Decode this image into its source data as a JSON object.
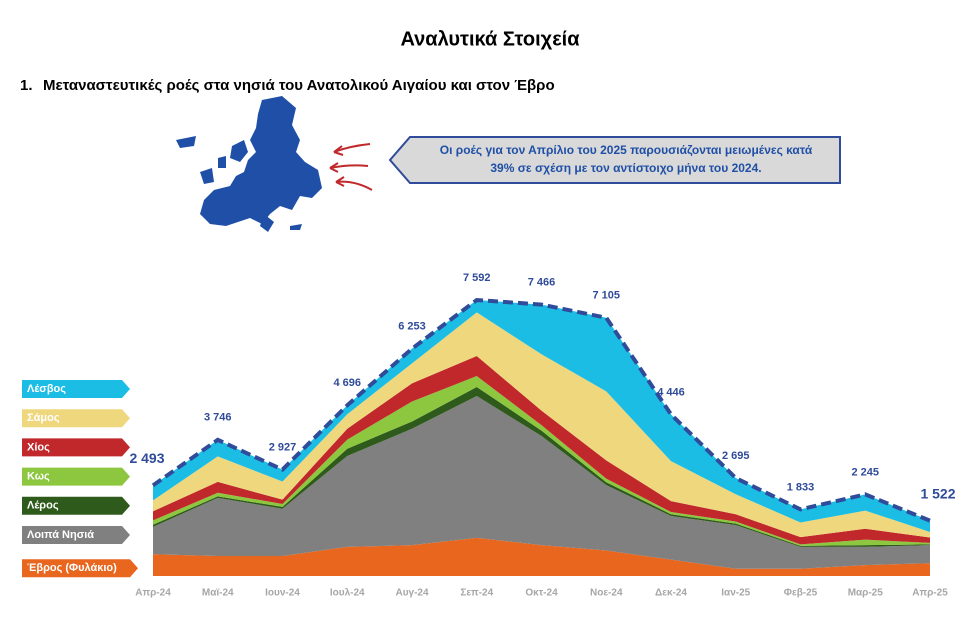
{
  "header": {
    "title": "Αναλυτικά Στοιχεία"
  },
  "section": {
    "number": "1.",
    "heading": "Μεταναστευτικές ροές στα νησιά του Ανατολικού Αιγαίου και στον Έβρο"
  },
  "callout": {
    "lines": [
      "Οι ροές για τον Απρίλιο του 2025 παρουσιάζονται μειωμένες κατά",
      "39% σε σχέση με τον αντίστοιχο μήνα του 2024."
    ]
  },
  "chart_data": {
    "type": "stacked_area",
    "categories": [
      "Απρ-24",
      "Μαϊ-24",
      "Ιουν-24",
      "Ιουλ-24",
      "Αυγ-24",
      "Σεπ-24",
      "Οκτ-24",
      "Νοε-24",
      "Δεκ-24",
      "Ιαν-25",
      "Φεβ-25",
      "Μαρ-25",
      "Απρ-25"
    ],
    "series": [
      {
        "name": "Έβρος (Φυλάκιο)",
        "color": "#e8661d",
        "values": [
          600,
          550,
          550,
          800,
          850,
          1050,
          850,
          700,
          450,
          200,
          200,
          300,
          350
        ]
      },
      {
        "name": "Λοιπά Νησιά",
        "color": "#808080",
        "values": [
          750,
          1600,
          1300,
          2500,
          3200,
          3900,
          3000,
          1800,
          1200,
          1200,
          600,
          500,
          500
        ]
      },
      {
        "name": "Λέρος",
        "color": "#2e5b1b",
        "values": [
          60,
          40,
          50,
          200,
          200,
          250,
          150,
          80,
          50,
          40,
          30,
          50,
          20
        ]
      },
      {
        "name": "Κως",
        "color": "#8dc63f",
        "values": [
          120,
          100,
          80,
          250,
          550,
          300,
          150,
          100,
          60,
          60,
          40,
          150,
          40
        ]
      },
      {
        "name": "Χίος",
        "color": "#c0282b",
        "values": [
          250,
          300,
          120,
          300,
          500,
          550,
          400,
          500,
          300,
          200,
          200,
          300,
          150
        ]
      },
      {
        "name": "Σάμος",
        "color": "#efd77e",
        "values": [
          300,
          700,
          500,
          400,
          550,
          1200,
          1550,
          1900,
          1100,
          550,
          400,
          500,
          150
        ]
      },
      {
        "name": "Λέσβος",
        "color": "#1bbde5",
        "values": [
          413,
          456,
          327,
          246,
          403,
          342,
          1366,
          2025,
          1286,
          445,
          363,
          445,
          312
        ]
      }
    ],
    "totals": {
      "color": "#2f4b9a",
      "values": [
        2493,
        3746,
        2927,
        4696,
        6253,
        7592,
        7466,
        7105,
        4446,
        2695,
        1833,
        2245,
        1522
      ],
      "value_labels": [
        "2 493",
        "3 746",
        "2 927",
        "4 696",
        "6 253",
        "7 592",
        "7 466",
        "7 105",
        "4 446",
        "2 695",
        "1 833",
        "2 245",
        "1 522"
      ]
    }
  }
}
